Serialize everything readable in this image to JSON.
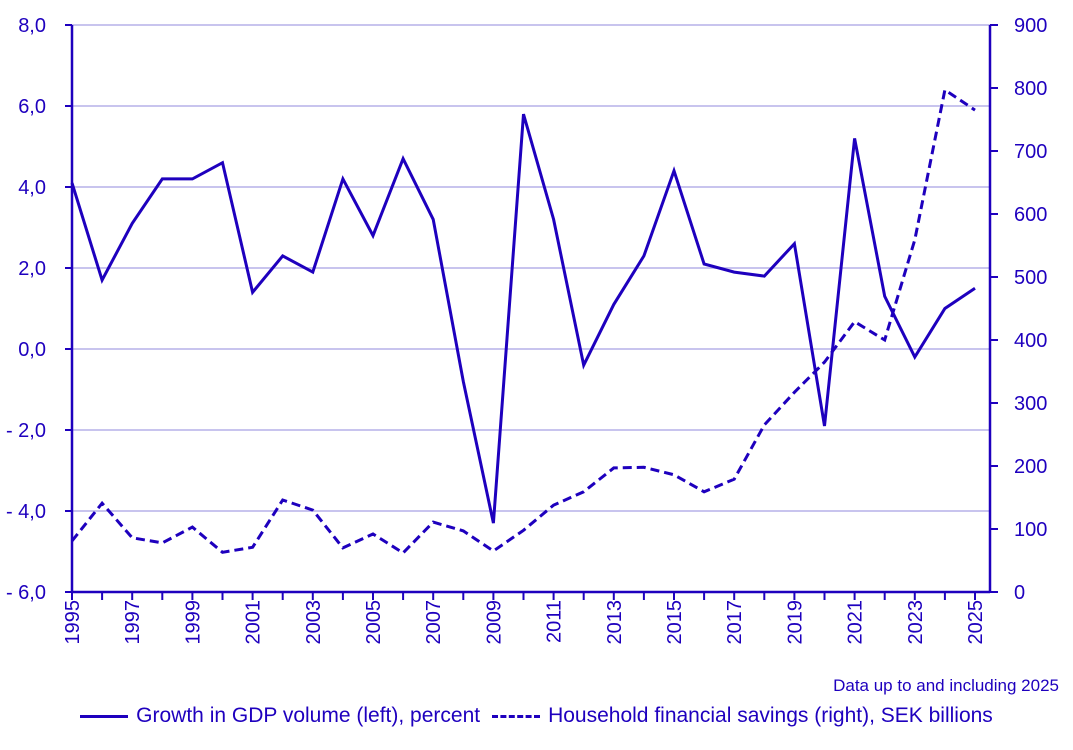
{
  "chart_data": {
    "type": "line",
    "title": "",
    "color": "#1e00be",
    "grid_color": "#c8c4ee",
    "grid": true,
    "legend_placement": "bottom",
    "note": "Data up to and including 2025",
    "x": [
      1995,
      1996,
      1997,
      1998,
      1999,
      2000,
      2001,
      2002,
      2003,
      2004,
      2005,
      2006,
      2007,
      2008,
      2009,
      2010,
      2011,
      2012,
      2013,
      2014,
      2015,
      2016,
      2017,
      2018,
      2019,
      2020,
      2021,
      2022,
      2023,
      2024,
      2025
    ],
    "x_tick_labels": [
      "1995",
      "1997",
      "1999",
      "2001",
      "2003",
      "2005",
      "2007",
      "2009",
      "2011",
      "2013",
      "2015",
      "2017",
      "2019",
      "2021",
      "2023",
      "2025"
    ],
    "y_left": {
      "range": [
        -6,
        8
      ],
      "tick_labels": [
        "8,0",
        "6,0",
        "4,0",
        "2,0",
        "0,0",
        "- 2,0",
        "- 4,0",
        "- 6,0"
      ],
      "tick_values": [
        8,
        6,
        4,
        2,
        0,
        -2,
        -4,
        -6
      ]
    },
    "y_right": {
      "range": [
        0,
        900
      ],
      "tick_labels": [
        "900",
        "800",
        "700",
        "600",
        "500",
        "400",
        "300",
        "200",
        "100",
        "0"
      ],
      "tick_values": [
        900,
        800,
        700,
        600,
        500,
        400,
        300,
        200,
        100,
        0
      ]
    },
    "series": [
      {
        "name": "Growth in GDP volume (left), percent",
        "axis": "left",
        "style": "solid",
        "values": [
          4.1,
          1.7,
          3.1,
          4.2,
          4.2,
          4.6,
          1.4,
          2.3,
          1.9,
          4.2,
          2.8,
          4.7,
          3.2,
          -0.8,
          -4.3,
          5.8,
          3.2,
          -0.4,
          1.1,
          2.3,
          4.4,
          2.1,
          1.9,
          1.8,
          2.6,
          -1.9,
          5.2,
          1.3,
          -0.2,
          1.0,
          1.5
        ]
      },
      {
        "name": "Household financial savings (right), SEK billions",
        "axis": "right",
        "style": "dashed",
        "values": [
          81,
          141,
          86,
          78,
          103,
          63,
          71,
          146,
          130,
          70,
          92,
          62,
          111,
          97,
          65,
          98,
          138,
          159,
          197,
          198,
          186,
          159,
          179,
          265,
          317,
          365,
          429,
          400,
          559,
          797,
          765
        ]
      }
    ]
  }
}
